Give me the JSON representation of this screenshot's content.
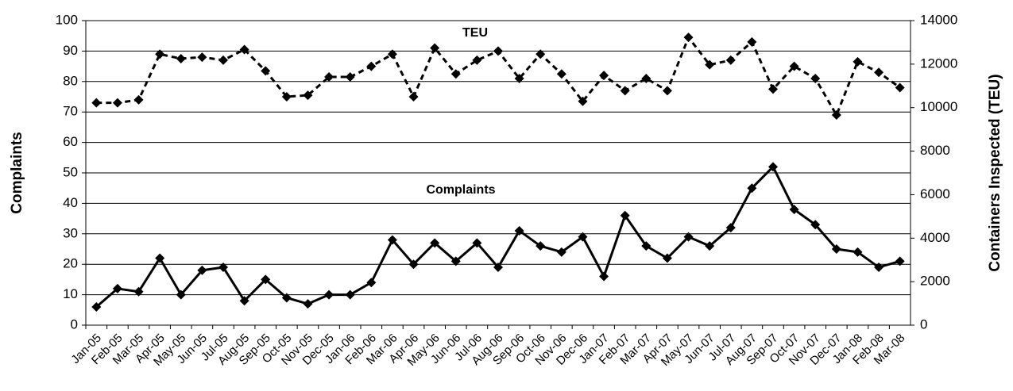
{
  "chart_data": {
    "type": "line",
    "categories": [
      "Jan-05",
      "Feb-05",
      "Mar-05",
      "Apr-05",
      "May-05",
      "Jun-05",
      "Jul-05",
      "Aug-05",
      "Sep-05",
      "Oct-05",
      "Nov-05",
      "Dec-05",
      "Jan-06",
      "Feb-06",
      "Mar-06",
      "Apr-06",
      "May-06",
      "Jun-06",
      "Jul-06",
      "Aug-06",
      "Sep-06",
      "Oct-06",
      "Nov-06",
      "Dec-06",
      "Jan-07",
      "Feb-07",
      "Mar-07",
      "Apr-07",
      "May-07",
      "Jun-07",
      "Jul-07",
      "Aug-07",
      "Sep-07",
      "Oct-07",
      "Nov-07",
      "Dec-07",
      "Jan-08",
      "Feb-08",
      "Mar-08"
    ],
    "series": [
      {
        "name": "Complaints",
        "color": "#000000",
        "dashed": false,
        "values": [
          6,
          12,
          11,
          22,
          10,
          18,
          19,
          8,
          15,
          9,
          7,
          10,
          10,
          14,
          28,
          20,
          27,
          21,
          27,
          19,
          31,
          26,
          24,
          29,
          16,
          36,
          26,
          22,
          29,
          26,
          32,
          45,
          52,
          38,
          33,
          25,
          24,
          19,
          21
        ]
      },
      {
        "name": "TEU",
        "color": "#000000",
        "dashed": true,
        "axis": "y2",
        "values": [
          10220,
          10220,
          10360,
          12460,
          12250,
          12320,
          12180,
          12670,
          11690,
          10500,
          10570,
          11410,
          11410,
          11900,
          12460,
          10500,
          12740,
          11550,
          12180,
          12600,
          11340,
          12460,
          11550,
          10290,
          11480,
          10780,
          11340,
          10780,
          13230,
          11970,
          12180,
          13020,
          10850,
          11900,
          11340,
          9660,
          12110,
          11620,
          10920
        ]
      }
    ],
    "ylabel": "Complaints",
    "y2label": "Containers Inspected (TEU)",
    "ylim": [
      0,
      100
    ],
    "yticks": [
      0,
      10,
      20,
      30,
      40,
      50,
      60,
      70,
      80,
      90,
      100
    ],
    "y2lim": [
      0,
      14000
    ],
    "y2ticks": [
      0,
      2000,
      4000,
      6000,
      8000,
      10000,
      12000,
      14000
    ],
    "grid": true
  }
}
